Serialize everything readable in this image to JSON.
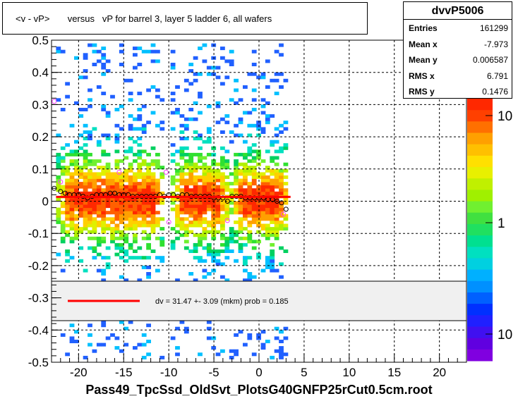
{
  "title": "<v - vP>       versus   vP for barrel 3, layer 5 ladder 6, all wafers",
  "stats": {
    "name": "dvvP5006",
    "rows": [
      {
        "key": "Entries",
        "value": "161299"
      },
      {
        "key": "Mean x",
        "value": "-7.973"
      },
      {
        "key": "Mean y",
        "value": "0.006587"
      },
      {
        "key": "RMS x",
        "value": "6.791"
      },
      {
        "key": "RMS y",
        "value": "0.1476"
      }
    ]
  },
  "fit_legend": "dv =   31.47 +-  3.09 (mkm) prob = 0.185",
  "x_axis_title": "Pass49_TpcSsd_OldSvt_PlotsG40GNFP25rCut0.5cm.root",
  "colors": {
    "fit_line": "#ff0000",
    "frame": "#000000",
    "legend_fill": "#f0f0f0"
  },
  "chart_data": {
    "type": "heatmap",
    "title": "<v - vP>       versus   vP for barrel 3, layer 5 ladder 6, all wafers",
    "xlabel": "Pass49_TpcSsd_OldSvt_PlotsG40GNFP25rCut0.5cm.root",
    "ylabel": "",
    "xlim": [
      -23,
      23
    ],
    "ylim": [
      -0.5,
      0.5
    ],
    "x_ticks": [
      -20,
      -15,
      -10,
      -5,
      0,
      5,
      10,
      15,
      20
    ],
    "x_tick_labels": [
      "-20",
      "-15",
      "-10",
      "-5",
      "0",
      "5",
      "10",
      "15",
      "20"
    ],
    "y_ticks": [
      -0.5,
      -0.4,
      -0.3,
      -0.2,
      -0.1,
      0,
      0.1,
      0.2,
      0.3,
      0.4,
      0.5
    ],
    "y_tick_labels": [
      "-0.5",
      "-0.4",
      "-0.3",
      "-0.2",
      "-0.1",
      "0",
      "0.1",
      "0.2",
      "0.3",
      "0.4",
      "0.5"
    ],
    "grid": true,
    "colorbar": {
      "scale": "log",
      "tick_labels": [
        "10",
        "1",
        "10"
      ]
    },
    "occupied_x_ranges": [
      [
        -22.5,
        -10.5
      ],
      [
        -9.8,
        -3.5
      ],
      [
        -3.3,
        3.2
      ]
    ],
    "profile_means": {
      "x": [
        -22.7,
        -22,
        -21.5,
        -21,
        -20.5,
        -20,
        -19.5,
        -19,
        -18.5,
        -18,
        -17.5,
        -17,
        -16.5,
        -16,
        -15.5,
        -15,
        -14.5,
        -14,
        -13.5,
        -13,
        -12.5,
        -12,
        -11.5,
        -11,
        -10.5,
        -10,
        -9.5,
        -9,
        -8.5,
        -8,
        -7.5,
        -7,
        -6.5,
        -6,
        -5.5,
        -5,
        -4.5,
        -4,
        -3.5,
        -3,
        -2.5,
        -2,
        -1.5,
        -1,
        -0.5,
        0,
        0.5,
        1,
        1.5,
        2,
        2.5,
        3
      ],
      "y": [
        0.04,
        0.03,
        0.025,
        0.02,
        0.02,
        0.02,
        0.015,
        0.01,
        0.015,
        0.02,
        0.02,
        0.02,
        0.025,
        0.025,
        0.02,
        0.02,
        0.02,
        0.015,
        0.015,
        0.015,
        0.015,
        0.015,
        0.015,
        0.02,
        0.015,
        0.02,
        0.02,
        0.015,
        0.02,
        0.02,
        0.015,
        0.015,
        0.015,
        0.015,
        0.015,
        0.01,
        0.01,
        0.01,
        0.0,
        0.015,
        0.015,
        0.015,
        0.01,
        0.01,
        0.01,
        0.01,
        0.01,
        0.005,
        0.005,
        0.0,
        -0.005,
        -0.025
      ]
    },
    "outlier_points": {
      "x": [
        -22.7,
        -22,
        -15.5,
        -10.3,
        -10,
        -3.5,
        2.7
      ],
      "y": [
        0.31,
        0.06,
        0.09,
        0.09,
        -0.065,
        -0.06,
        -0.04
      ]
    },
    "fit": {
      "legend": "dv =   31.47 +-  3.09 (mkm) prob = 0.185",
      "x_range": [
        -22.5,
        3.5
      ],
      "y_value": 0.0135
    }
  }
}
